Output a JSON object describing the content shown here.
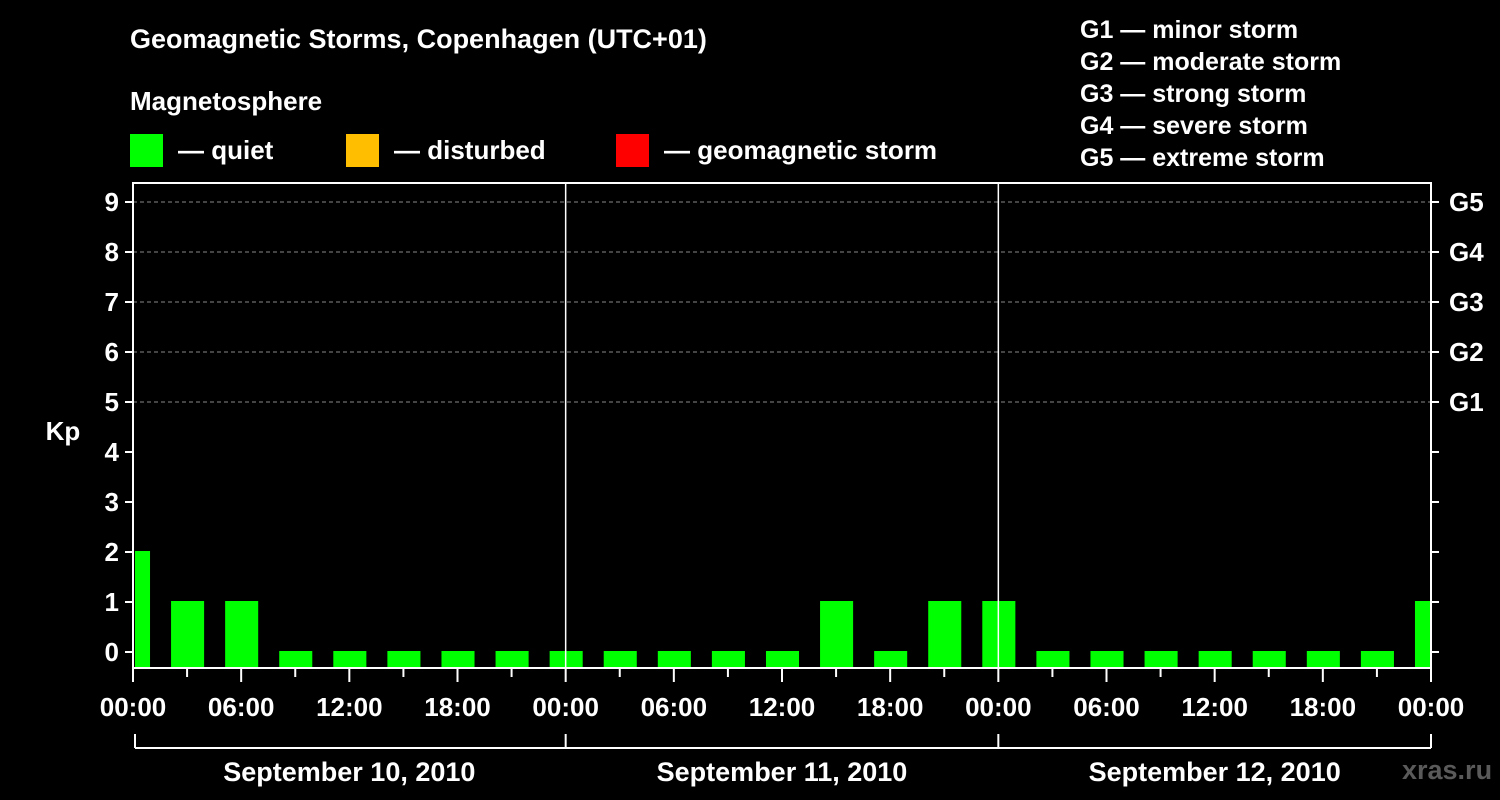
{
  "chart_data": {
    "type": "bar",
    "title": "Geomagnetic Storms, Copenhagen (UTC+01)",
    "ylabel": "Kp",
    "ylim": [
      0,
      9
    ],
    "yticks": [
      0,
      1,
      2,
      3,
      4,
      5,
      6,
      7,
      8,
      9
    ],
    "right_axis_labels": [
      {
        "kp": 5,
        "label": "G1"
      },
      {
        "kp": 6,
        "label": "G2"
      },
      {
        "kp": 7,
        "label": "G3"
      },
      {
        "kp": 8,
        "label": "G4"
      },
      {
        "kp": 9,
        "label": "G5"
      }
    ],
    "x_tick_labels": [
      "00:00",
      "06:00",
      "12:00",
      "18:00",
      "00:00",
      "06:00",
      "12:00",
      "18:00",
      "00:00",
      "06:00",
      "12:00",
      "18:00",
      "00:00"
    ],
    "day_labels": [
      "September 10, 2010",
      "September 11, 2010",
      "September 12, 2010"
    ],
    "bars": [
      {
        "start_hour": 0,
        "end_hour": 1,
        "kp": 2
      },
      {
        "start_hour": 2,
        "end_hour": 4,
        "kp": 1
      },
      {
        "start_hour": 5,
        "end_hour": 7,
        "kp": 1
      },
      {
        "start_hour": 8,
        "end_hour": 10,
        "kp": 0
      },
      {
        "start_hour": 11,
        "end_hour": 13,
        "kp": 0
      },
      {
        "start_hour": 14,
        "end_hour": 16,
        "kp": 0
      },
      {
        "start_hour": 17,
        "end_hour": 19,
        "kp": 0
      },
      {
        "start_hour": 20,
        "end_hour": 22,
        "kp": 0
      },
      {
        "start_hour": 23,
        "end_hour": 25,
        "kp": 0
      },
      {
        "start_hour": 26,
        "end_hour": 28,
        "kp": 0
      },
      {
        "start_hour": 29,
        "end_hour": 31,
        "kp": 0
      },
      {
        "start_hour": 32,
        "end_hour": 34,
        "kp": 0
      },
      {
        "start_hour": 35,
        "end_hour": 37,
        "kp": 0
      },
      {
        "start_hour": 38,
        "end_hour": 40,
        "kp": 1
      },
      {
        "start_hour": 41,
        "end_hour": 43,
        "kp": 0
      },
      {
        "start_hour": 44,
        "end_hour": 46,
        "kp": 1
      },
      {
        "start_hour": 47,
        "end_hour": 49,
        "kp": 1
      },
      {
        "start_hour": 50,
        "end_hour": 52,
        "kp": 0
      },
      {
        "start_hour": 53,
        "end_hour": 55,
        "kp": 0
      },
      {
        "start_hour": 56,
        "end_hour": 58,
        "kp": 0
      },
      {
        "start_hour": 59,
        "end_hour": 61,
        "kp": 0
      },
      {
        "start_hour": 62,
        "end_hour": 64,
        "kp": 0
      },
      {
        "start_hour": 65,
        "end_hour": 67,
        "kp": 0
      },
      {
        "start_hour": 68,
        "end_hour": 70,
        "kp": 0
      },
      {
        "start_hour": 71,
        "end_hour": 72,
        "kp": 1
      }
    ],
    "x_range_hours": [
      0,
      72
    ],
    "grid": true
  },
  "legend": {
    "title": "Magnetosphere",
    "items": [
      {
        "label": "— quiet",
        "color": "#00ff00"
      },
      {
        "label": "— disturbed",
        "color": "#ffbf00"
      },
      {
        "label": "— geomagnetic storm",
        "color": "#ff0000"
      }
    ]
  },
  "g_scale": [
    "G1 — minor storm",
    "G2 — moderate storm",
    "G3 — strong storm",
    "G4 — severe storm",
    "G5 — extreme storm"
  ],
  "watermark": "xras.ru",
  "colors": {
    "quiet": "#00ff00",
    "background": "#000000",
    "axis": "#ffffff",
    "grid": "#888888"
  }
}
